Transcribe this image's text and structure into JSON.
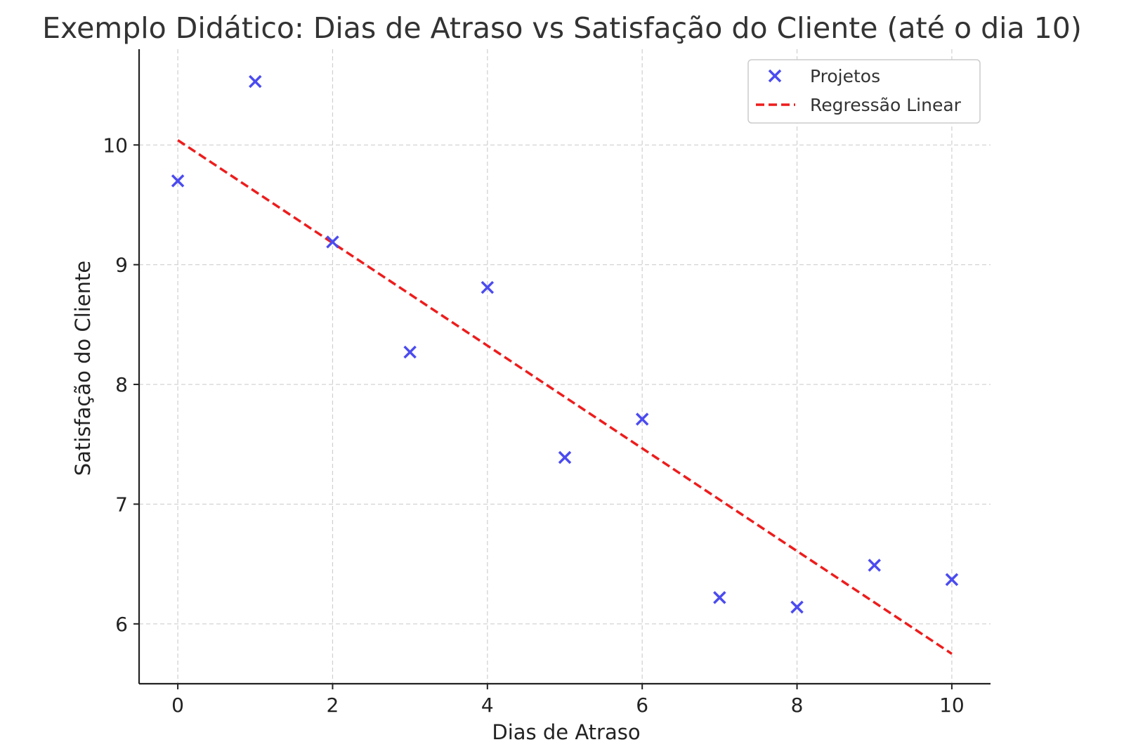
{
  "chart_data": {
    "type": "scatter",
    "title": "Exemplo Didático: Dias de Atraso vs Satisfação do Cliente (até o dia 10)",
    "xlabel": "Dias de Atraso",
    "ylabel": "Satisfação do Cliente",
    "xlim": [
      -0.5,
      10.5
    ],
    "ylim": [
      5.5,
      10.8
    ],
    "xticks": [
      0,
      2,
      4,
      6,
      8,
      10
    ],
    "yticks": [
      6,
      7,
      8,
      9,
      10
    ],
    "grid": true,
    "legend_position": "top-right",
    "series": [
      {
        "name": "Projetos",
        "kind": "scatter",
        "marker": "x",
        "color": "#4b4bf0",
        "x": [
          0,
          1,
          2,
          3,
          4,
          5,
          6,
          7,
          8,
          9,
          10
        ],
        "y": [
          9.7,
          10.53,
          9.19,
          8.27,
          8.81,
          7.39,
          7.71,
          6.22,
          6.14,
          6.49,
          6.37
        ]
      },
      {
        "name": "Regressão Linear",
        "kind": "line",
        "style": "dashed",
        "color": "#ee1c1c",
        "x": [
          0,
          10
        ],
        "y": [
          10.04,
          5.75
        ]
      }
    ]
  }
}
